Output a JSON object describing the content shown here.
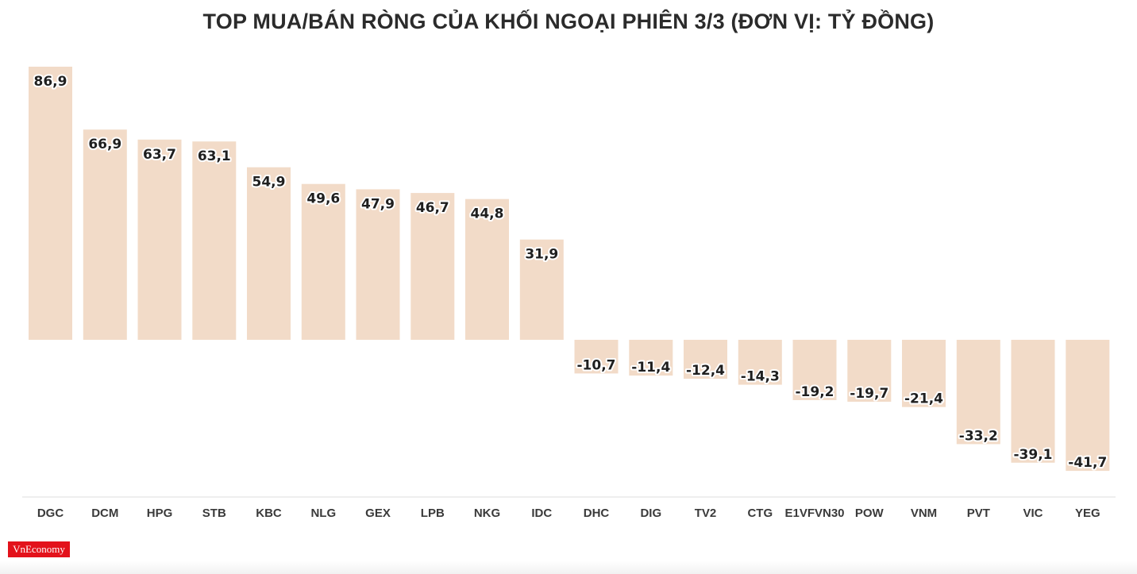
{
  "chart_data": {
    "type": "bar",
    "title": "TOP MUA/BÁN RÒNG CỦA KHỐI NGOẠI PHIÊN 3/3 (ĐƠN VỊ: TỶ ĐỒNG)",
    "categories": [
      "DGC",
      "DCM",
      "HPG",
      "STB",
      "KBC",
      "NLG",
      "GEX",
      "LPB",
      "NKG",
      "IDC",
      "DHC",
      "DIG",
      "TV2",
      "CTG",
      "E1VFVN30",
      "POW",
      "VNM",
      "PVT",
      "VIC",
      "YEG"
    ],
    "values": [
      86.9,
      66.9,
      63.7,
      63.1,
      54.9,
      49.6,
      47.9,
      46.7,
      44.8,
      31.9,
      -10.7,
      -11.4,
      -12.4,
      -14.3,
      -19.2,
      -19.7,
      -21.4,
      -33.2,
      -39.1,
      -41.7
    ],
    "value_labels": [
      "86,9",
      "66,9",
      "63,7",
      "63,1",
      "54,9",
      "49,6",
      "47,9",
      "46,7",
      "44,8",
      "31,9",
      "-10,7",
      "-11,4",
      "-12,4",
      "-14,3",
      "-19,2",
      "-19,7",
      "-21,4",
      "-33,2",
      "-39,1",
      "-41,7"
    ],
    "xlabel": "",
    "ylabel": "",
    "ylim": [
      -50,
      90
    ],
    "grid": false,
    "bar_color": "#f2dbc8",
    "axis_color": "#dddddd"
  },
  "brand": {
    "logo_text": "VnEconomy",
    "logo_color": "#e3121b"
  }
}
